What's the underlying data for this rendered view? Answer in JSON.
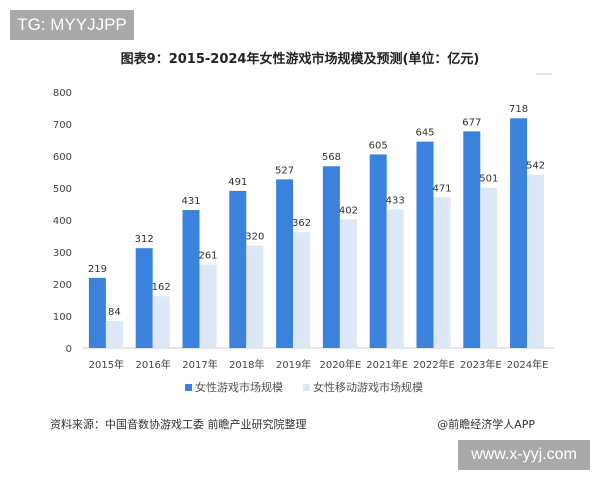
{
  "watermark_top": "TG: MYYJJPP",
  "watermark_bottom": "www.x-yyj.com",
  "source": "资料来源：中国音数协游戏工委 前瞻产业研究院整理",
  "brand": "@前瞻经济学人APP",
  "chart_data": {
    "type": "bar",
    "title": "图表9：2015-2024年女性游戏市场规模及预测(单位：亿元)",
    "categories": [
      "2015年",
      "2016年",
      "2017年",
      "2018年",
      "2019年",
      "2020年E",
      "2021年E",
      "2022年E",
      "2023年E",
      "2024年E"
    ],
    "series": [
      {
        "name": "女性游戏市场规模",
        "color": "#3b82dc",
        "values": [
          219,
          312,
          431,
          491,
          527,
          568,
          605,
          645,
          677,
          718
        ]
      },
      {
        "name": "女性移动游戏市场规模",
        "color": "#dde8f6",
        "values": [
          84,
          162,
          261,
          320,
          362,
          402,
          433,
          471,
          501,
          542
        ]
      }
    ],
    "ylim": [
      0,
      800
    ],
    "yticks": [
      "0",
      "100",
      "200",
      "300",
      "400",
      "500",
      "600",
      "700",
      "800"
    ],
    "grid": false,
    "legend": "bottom"
  }
}
